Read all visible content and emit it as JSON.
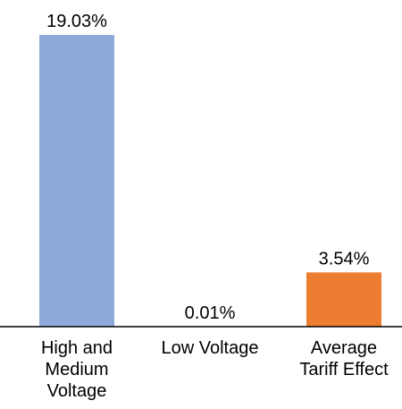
{
  "chart_data": {
    "type": "bar",
    "categories": [
      [
        "High and",
        "Medium",
        "Voltage"
      ],
      [
        "Low Voltage"
      ],
      [
        "Average",
        "Tariff Effect"
      ]
    ],
    "values": [
      19.03,
      0.01,
      3.54
    ],
    "value_labels": [
      "19.03%",
      "0.01%",
      "3.54%"
    ],
    "bar_colors": [
      "#8EAADB",
      "#8EAADB",
      "#ED7D31"
    ],
    "ylim": [
      0,
      20
    ],
    "grid": false,
    "legend": "none",
    "title": "",
    "xlabel": "",
    "ylabel": ""
  }
}
